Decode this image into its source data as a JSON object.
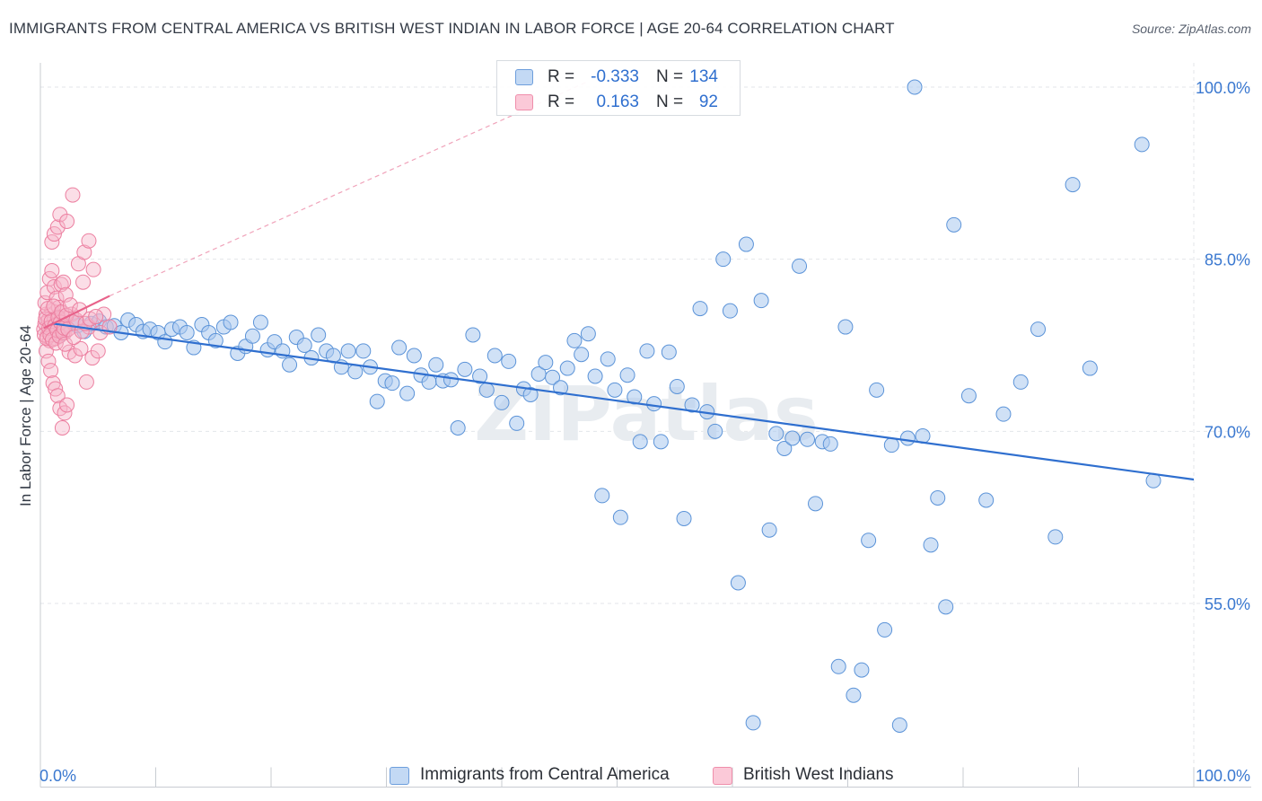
{
  "title": "IMMIGRANTS FROM CENTRAL AMERICA VS BRITISH WEST INDIAN IN LABOR FORCE | AGE 20-64 CORRELATION CHART",
  "source": "Source: ZipAtlas.com",
  "watermark": "ZIPatlas",
  "legend_top": [
    {
      "r_label": "R =",
      "r_value": "-0.333",
      "n_label": "N =",
      "n_value": "134"
    },
    {
      "r_label": "R =",
      "r_value": "0.163",
      "n_label": "N =",
      "n_value": "92"
    }
  ],
  "legend_bottom": [
    "Immigrants from Central America",
    "British West Indians"
  ],
  "colors": {
    "blue_fill": "#a9c8ef",
    "blue_stroke": "#5b93d8",
    "blue_line": "#2f6fcf",
    "pink_fill": "#f7b6c9",
    "pink_stroke": "#ec7fa0",
    "pink_line": "#e8628a",
    "tick_label": "#3a78d0",
    "grid": "#e3e6ea"
  },
  "chart_data": {
    "type": "scatter",
    "title": "IMMIGRANTS FROM CENTRAL AMERICA VS BRITISH WEST INDIAN IN LABOR FORCE | AGE 20-64 CORRELATION CHART",
    "xlabel": "",
    "ylabel": "In Labor Force | Age 20-64",
    "xlim": [
      0,
      100
    ],
    "ylim": [
      39,
      101.5
    ],
    "x_tick_labels": [
      "0.0%",
      "100.0%"
    ],
    "y_ticks": [
      100,
      85,
      70,
      55
    ],
    "y_tick_labels": [
      "100.0%",
      "85.0%",
      "70.0%",
      "55.0%"
    ],
    "grid": true,
    "legend_position": "top-center",
    "series": [
      {
        "name": "Immigrants from Central America",
        "r": -0.333,
        "n": 134,
        "trend": {
          "x0": 1.0,
          "y0": 79.4,
          "x1": 100.0,
          "y1": 65.8,
          "style": "solid"
        },
        "points": [
          [
            1.0,
            79.0
          ],
          [
            1.6,
            78.3
          ],
          [
            2.2,
            79.2
          ],
          [
            2.8,
            79.6
          ],
          [
            3.2,
            79.2
          ],
          [
            3.8,
            78.7
          ],
          [
            4.4,
            79.4
          ],
          [
            5.1,
            79.6
          ],
          [
            5.7,
            79.1
          ],
          [
            6.4,
            79.2
          ],
          [
            7.0,
            78.6
          ],
          [
            7.6,
            79.7
          ],
          [
            8.3,
            79.3
          ],
          [
            8.9,
            78.7
          ],
          [
            9.5,
            78.9
          ],
          [
            10.2,
            78.6
          ],
          [
            10.8,
            77.8
          ],
          [
            11.4,
            78.9
          ],
          [
            12.1,
            79.1
          ],
          [
            12.7,
            78.6
          ],
          [
            13.3,
            77.3
          ],
          [
            14.0,
            79.3
          ],
          [
            14.6,
            78.6
          ],
          [
            15.2,
            77.9
          ],
          [
            15.9,
            79.1
          ],
          [
            16.5,
            79.5
          ],
          [
            17.1,
            76.8
          ],
          [
            17.8,
            77.4
          ],
          [
            18.4,
            78.3
          ],
          [
            19.1,
            79.5
          ],
          [
            19.7,
            77.1
          ],
          [
            20.3,
            77.8
          ],
          [
            21.0,
            77.0
          ],
          [
            21.6,
            75.8
          ],
          [
            22.2,
            78.2
          ],
          [
            22.9,
            77.5
          ],
          [
            23.5,
            76.4
          ],
          [
            24.1,
            78.4
          ],
          [
            24.8,
            77.0
          ],
          [
            25.4,
            76.6
          ],
          [
            26.1,
            75.6
          ],
          [
            26.7,
            77.0
          ],
          [
            27.3,
            75.2
          ],
          [
            28.0,
            77.0
          ],
          [
            28.6,
            75.6
          ],
          [
            29.2,
            72.6
          ],
          [
            29.9,
            74.4
          ],
          [
            30.5,
            74.2
          ],
          [
            31.1,
            77.3
          ],
          [
            31.8,
            73.3
          ],
          [
            32.4,
            76.6
          ],
          [
            33.0,
            74.9
          ],
          [
            33.7,
            74.3
          ],
          [
            34.3,
            75.8
          ],
          [
            34.9,
            74.4
          ],
          [
            35.6,
            74.5
          ],
          [
            36.2,
            70.3
          ],
          [
            36.8,
            75.4
          ],
          [
            37.5,
            78.4
          ],
          [
            38.1,
            74.8
          ],
          [
            38.7,
            73.6
          ],
          [
            39.4,
            76.6
          ],
          [
            40.0,
            72.5
          ],
          [
            40.6,
            76.1
          ],
          [
            41.3,
            70.7
          ],
          [
            41.9,
            73.7
          ],
          [
            42.5,
            73.2
          ],
          [
            43.2,
            75.0
          ],
          [
            43.8,
            76.0
          ],
          [
            44.4,
            74.7
          ],
          [
            45.1,
            73.8
          ],
          [
            45.7,
            75.5
          ],
          [
            46.3,
            77.9
          ],
          [
            46.9,
            76.7
          ],
          [
            47.5,
            78.5
          ],
          [
            48.1,
            74.8
          ],
          [
            48.7,
            64.4
          ],
          [
            49.2,
            76.3
          ],
          [
            49.8,
            73.6
          ],
          [
            50.3,
            62.5
          ],
          [
            50.9,
            74.9
          ],
          [
            51.5,
            73.0
          ],
          [
            52.0,
            69.1
          ],
          [
            52.6,
            77.0
          ],
          [
            53.2,
            72.4
          ],
          [
            53.8,
            69.1
          ],
          [
            54.5,
            76.9
          ],
          [
            55.2,
            73.9
          ],
          [
            55.8,
            62.4
          ],
          [
            56.5,
            72.3
          ],
          [
            57.2,
            80.7
          ],
          [
            57.8,
            71.7
          ],
          [
            58.5,
            70.0
          ],
          [
            59.2,
            85.0
          ],
          [
            59.8,
            80.5
          ],
          [
            60.5,
            56.8
          ],
          [
            61.2,
            86.3
          ],
          [
            61.8,
            44.6
          ],
          [
            62.5,
            81.4
          ],
          [
            63.2,
            61.4
          ],
          [
            63.8,
            69.8
          ],
          [
            64.5,
            68.5
          ],
          [
            65.2,
            69.4
          ],
          [
            65.8,
            84.4
          ],
          [
            66.5,
            69.3
          ],
          [
            67.2,
            63.7
          ],
          [
            67.8,
            69.1
          ],
          [
            68.5,
            68.9
          ],
          [
            69.2,
            49.5
          ],
          [
            69.8,
            79.1
          ],
          [
            70.5,
            47.0
          ],
          [
            71.2,
            49.2
          ],
          [
            71.8,
            60.5
          ],
          [
            72.5,
            73.6
          ],
          [
            73.2,
            52.7
          ],
          [
            73.8,
            68.8
          ],
          [
            74.5,
            44.4
          ],
          [
            75.2,
            69.4
          ],
          [
            75.8,
            100.0
          ],
          [
            76.5,
            69.6
          ],
          [
            77.2,
            60.1
          ],
          [
            77.8,
            64.2
          ],
          [
            78.5,
            54.7
          ],
          [
            79.2,
            88.0
          ],
          [
            80.5,
            73.1
          ],
          [
            82.0,
            64.0
          ],
          [
            83.5,
            71.5
          ],
          [
            85.0,
            74.3
          ],
          [
            86.5,
            78.9
          ],
          [
            88.0,
            60.8
          ],
          [
            89.5,
            91.5
          ],
          [
            91.0,
            75.5
          ],
          [
            95.5,
            95.0
          ],
          [
            96.5,
            65.7
          ]
        ]
      },
      {
        "name": "British West Indians",
        "r": 0.163,
        "n": 92,
        "trend": {
          "x0": 0.3,
          "y0": 79.0,
          "x1": 6.0,
          "y1": 81.8,
          "style": "solid"
        },
        "trend_extension": {
          "x0": 6.0,
          "y0": 81.8,
          "x1": 47.5,
          "y1": 100.5,
          "style": "dashed"
        },
        "points": [
          [
            0.3,
            78.9
          ],
          [
            0.4,
            79.4
          ],
          [
            0.5,
            80.2
          ],
          [
            0.6,
            78.3
          ],
          [
            0.7,
            79.7
          ],
          [
            0.8,
            77.9
          ],
          [
            0.9,
            79.1
          ],
          [
            1.0,
            80.5
          ],
          [
            1.1,
            78.7
          ],
          [
            1.2,
            79.8
          ],
          [
            1.3,
            78.1
          ],
          [
            1.4,
            79.3
          ],
          [
            1.5,
            80.0
          ],
          [
            1.6,
            78.5
          ],
          [
            1.7,
            79.6
          ],
          [
            1.8,
            78.9
          ],
          [
            1.9,
            80.3
          ],
          [
            2.0,
            79.2
          ],
          [
            2.1,
            78.6
          ],
          [
            2.2,
            79.9
          ],
          [
            0.4,
            81.2
          ],
          [
            0.6,
            82.1
          ],
          [
            0.8,
            83.3
          ],
          [
            1.0,
            84.0
          ],
          [
            1.2,
            82.6
          ],
          [
            1.4,
            81.6
          ],
          [
            1.6,
            80.8
          ],
          [
            1.8,
            82.8
          ],
          [
            2.0,
            83.0
          ],
          [
            2.2,
            81.9
          ],
          [
            0.5,
            77.0
          ],
          [
            0.7,
            76.1
          ],
          [
            0.9,
            75.3
          ],
          [
            1.1,
            74.2
          ],
          [
            1.3,
            73.7
          ],
          [
            1.5,
            73.1
          ],
          [
            1.7,
            72.0
          ],
          [
            1.9,
            70.3
          ],
          [
            2.1,
            71.6
          ],
          [
            2.3,
            72.3
          ],
          [
            1.0,
            86.5
          ],
          [
            1.2,
            87.2
          ],
          [
            1.5,
            87.8
          ],
          [
            1.7,
            88.9
          ],
          [
            2.3,
            88.3
          ],
          [
            2.8,
            90.6
          ],
          [
            3.3,
            84.6
          ],
          [
            3.8,
            85.6
          ],
          [
            4.2,
            86.6
          ],
          [
            4.6,
            84.1
          ],
          [
            2.5,
            76.9
          ],
          [
            3.0,
            76.6
          ],
          [
            3.5,
            77.2
          ],
          [
            4.0,
            74.3
          ],
          [
            4.5,
            76.4
          ],
          [
            5.0,
            77.0
          ],
          [
            2.7,
            80.2
          ],
          [
            3.2,
            79.5
          ],
          [
            3.7,
            83.0
          ],
          [
            4.2,
            79.1
          ],
          [
            5.5,
            80.2
          ],
          [
            0.35,
            78.4
          ],
          [
            0.45,
            79.8
          ],
          [
            0.55,
            78.1
          ],
          [
            0.65,
            80.7
          ],
          [
            0.75,
            79.0
          ],
          [
            0.85,
            78.4
          ],
          [
            0.95,
            79.6
          ],
          [
            1.05,
            78.0
          ],
          [
            1.15,
            80.9
          ],
          [
            1.25,
            79.2
          ],
          [
            1.35,
            77.7
          ],
          [
            1.45,
            78.8
          ],
          [
            1.55,
            79.9
          ],
          [
            1.65,
            78.3
          ],
          [
            1.75,
            79.5
          ],
          [
            1.85,
            80.4
          ],
          [
            1.95,
            78.6
          ],
          [
            2.05,
            79.0
          ],
          [
            2.15,
            77.6
          ],
          [
            2.25,
            80.1
          ],
          [
            2.4,
            78.9
          ],
          [
            2.6,
            81.0
          ],
          [
            2.9,
            78.2
          ],
          [
            3.1,
            79.7
          ],
          [
            3.4,
            80.6
          ],
          [
            3.6,
            78.7
          ],
          [
            3.9,
            79.4
          ],
          [
            4.3,
            79.8
          ],
          [
            4.8,
            80.0
          ],
          [
            5.2,
            78.6
          ],
          [
            6.0,
            79.1
          ]
        ]
      }
    ]
  }
}
